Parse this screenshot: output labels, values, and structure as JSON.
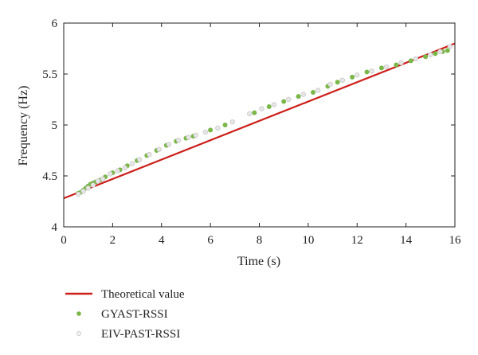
{
  "chart_data": {
    "type": "scatter",
    "xlabel": "Time (s)",
    "ylabel": "Frequency (Hz)",
    "xlim": [
      0,
      16
    ],
    "ylim": [
      4,
      6
    ],
    "x_ticks": [
      0,
      2,
      4,
      6,
      8,
      10,
      12,
      14,
      16
    ],
    "y_ticks": [
      4,
      4.5,
      5,
      5.5,
      6
    ],
    "x_tick_labels": [
      "0",
      "2",
      "4",
      "6",
      "8",
      "10",
      "12",
      "14",
      "16"
    ],
    "y_tick_labels": [
      "4",
      "4.5",
      "5",
      "5.5",
      "6"
    ],
    "grid": false,
    "legend_position": "below",
    "series": [
      {
        "name": "Theoretical value",
        "kind": "line",
        "color": "#cc1f1a",
        "x": [
          0,
          16
        ],
        "y": [
          4.28,
          5.8
        ]
      },
      {
        "name": "GYAST-RSSI",
        "kind": "scatter",
        "color": "#7ab648",
        "x": [
          0.6,
          0.7,
          0.8,
          0.9,
          1.0,
          1.1,
          1.2,
          1.3,
          1.5,
          1.7,
          2.0,
          2.3,
          2.6,
          3.0,
          3.4,
          3.8,
          4.2,
          4.6,
          5.0,
          5.3,
          6.0,
          6.6,
          7.8,
          8.4,
          9.0,
          9.6,
          10.2,
          10.8,
          11.2,
          11.8,
          12.4,
          13.0,
          13.6,
          14.2,
          14.8,
          15.2,
          15.5,
          15.7
        ],
        "y": [
          4.33,
          4.34,
          4.36,
          4.38,
          4.4,
          4.42,
          4.43,
          4.44,
          4.46,
          4.49,
          4.53,
          4.56,
          4.6,
          4.65,
          4.7,
          4.75,
          4.8,
          4.84,
          4.87,
          4.89,
          4.95,
          5.0,
          5.12,
          5.18,
          5.23,
          5.28,
          5.32,
          5.38,
          5.42,
          5.47,
          5.52,
          5.56,
          5.59,
          5.63,
          5.67,
          5.7,
          5.72,
          5.73
        ]
      },
      {
        "name": "EIV-PAST-RSSI",
        "kind": "scatter",
        "color": "#d7d7d7",
        "x": [
          0.6,
          0.8,
          1.0,
          1.2,
          1.4,
          1.6,
          1.9,
          2.2,
          2.5,
          2.8,
          3.1,
          3.5,
          3.9,
          4.3,
          4.7,
          5.1,
          5.4,
          5.8,
          6.3,
          6.9,
          7.6,
          8.1,
          8.6,
          9.2,
          9.8,
          10.4,
          10.9,
          11.4,
          12.0,
          12.6,
          13.2,
          13.8,
          14.4,
          15.0,
          15.4,
          15.8
        ],
        "y": [
          4.32,
          4.35,
          4.38,
          4.41,
          4.45,
          4.47,
          4.52,
          4.55,
          4.58,
          4.62,
          4.66,
          4.71,
          4.76,
          4.81,
          4.85,
          4.88,
          4.9,
          4.93,
          4.97,
          5.03,
          5.11,
          5.16,
          5.2,
          5.25,
          5.3,
          5.34,
          5.4,
          5.44,
          5.49,
          5.53,
          5.57,
          5.61,
          5.65,
          5.69,
          5.72,
          5.77
        ]
      }
    ]
  }
}
